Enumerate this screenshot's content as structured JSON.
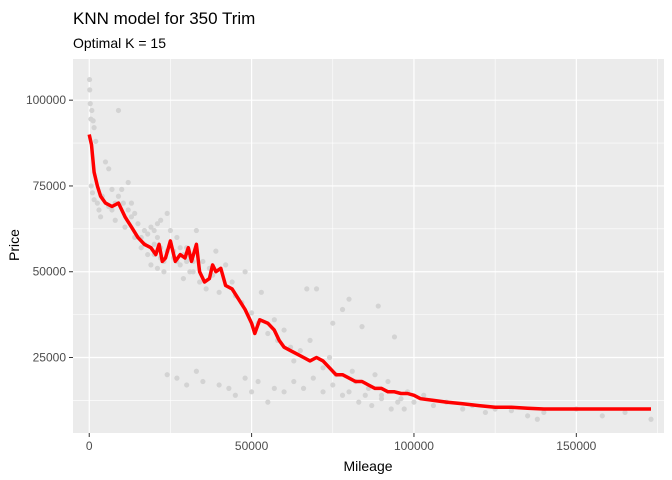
{
  "chart_data": {
    "type": "scatter",
    "title": "KNN model for 350 Trim",
    "subtitle": "Optimal K = 15",
    "xlabel": "Mileage",
    "ylabel": "Price",
    "xlim": [
      -5000,
      177000
    ],
    "ylim": [
      3000,
      112000
    ],
    "xticks": [
      0,
      50000,
      100000,
      150000
    ],
    "xtick_labels": [
      "0",
      "50000",
      "100000",
      "150000"
    ],
    "yticks": [
      25000,
      50000,
      75000,
      100000
    ],
    "ytick_labels": [
      "25000",
      "50000",
      "75000",
      "100000"
    ],
    "grid": true,
    "legend": "none",
    "colors": {
      "panel": "#ebebeb",
      "grid": "#ffffff",
      "points": "#d3d3d3",
      "fit_line": "#ff0000"
    },
    "series": [
      {
        "type": "scatter",
        "points": [
          [
            100,
            106000
          ],
          [
            150,
            103000
          ],
          [
            300,
            99000
          ],
          [
            500,
            94500
          ],
          [
            800,
            97000
          ],
          [
            1200,
            94000
          ],
          [
            1500,
            92000
          ],
          [
            2000,
            88000
          ],
          [
            600,
            75000
          ],
          [
            1000,
            73000
          ],
          [
            1500,
            71000
          ],
          [
            2500,
            70000
          ],
          [
            3000,
            68000
          ],
          [
            3500,
            66000
          ],
          [
            4000,
            72000
          ],
          [
            5000,
            82000
          ],
          [
            6000,
            80000
          ],
          [
            7000,
            68000
          ],
          [
            8000,
            65000
          ],
          [
            9000,
            97000
          ],
          [
            10000,
            74000
          ],
          [
            10500,
            70000
          ],
          [
            11000,
            63000
          ],
          [
            12000,
            76000
          ],
          [
            13000,
            66000
          ],
          [
            14000,
            60000
          ],
          [
            15000,
            64000
          ],
          [
            16000,
            57000
          ],
          [
            17000,
            62000
          ],
          [
            18000,
            55000
          ],
          [
            19000,
            52000
          ],
          [
            20000,
            58000
          ],
          [
            21000,
            60000
          ],
          [
            22000,
            54000
          ],
          [
            23000,
            50000
          ],
          [
            24000,
            67000
          ],
          [
            25000,
            62000
          ],
          [
            26000,
            56000
          ],
          [
            27000,
            60000
          ],
          [
            28000,
            52000
          ],
          [
            29000,
            48000
          ],
          [
            30000,
            57000
          ],
          [
            31000,
            54000
          ],
          [
            32000,
            50000
          ],
          [
            33000,
            62000
          ],
          [
            34000,
            47000
          ],
          [
            35000,
            53000
          ],
          [
            36000,
            45000
          ],
          [
            37000,
            51000
          ],
          [
            38000,
            49000
          ],
          [
            39000,
            56000
          ],
          [
            40000,
            44000
          ],
          [
            42000,
            52000
          ],
          [
            44000,
            47000
          ],
          [
            45000,
            43000
          ],
          [
            47000,
            41000
          ],
          [
            48000,
            50000
          ],
          [
            50000,
            38000
          ],
          [
            52000,
            35000
          ],
          [
            53000,
            44000
          ],
          [
            55000,
            32000
          ],
          [
            57000,
            36000
          ],
          [
            58000,
            30000
          ],
          [
            60000,
            33000
          ],
          [
            62000,
            28000
          ],
          [
            63000,
            24000
          ],
          [
            65000,
            27000
          ],
          [
            67000,
            45000
          ],
          [
            68000,
            30000
          ],
          [
            70000,
            45000
          ],
          [
            72000,
            22000
          ],
          [
            74000,
            25000
          ],
          [
            75000,
            35000
          ],
          [
            76000,
            20000
          ],
          [
            78000,
            39000
          ],
          [
            80000,
            42000
          ],
          [
            81000,
            21000
          ],
          [
            82000,
            18000
          ],
          [
            84000,
            34000
          ],
          [
            86000,
            16000
          ],
          [
            88000,
            20000
          ],
          [
            89000,
            40000
          ],
          [
            90000,
            14000
          ],
          [
            92000,
            18000
          ],
          [
            94000,
            31000
          ],
          [
            96000,
            13000
          ],
          [
            98000,
            15000
          ],
          [
            100000,
            12000
          ],
          [
            103000,
            14000
          ],
          [
            106000,
            11000
          ],
          [
            110000,
            12000
          ],
          [
            115000,
            10000
          ],
          [
            118000,
            11000
          ],
          [
            122000,
            9000
          ],
          [
            125000,
            10000
          ],
          [
            130000,
            9500
          ],
          [
            135000,
            8000
          ],
          [
            138000,
            7000
          ],
          [
            140000,
            9000
          ],
          [
            150000,
            10000
          ],
          [
            158000,
            8000
          ],
          [
            165000,
            9000
          ],
          [
            173000,
            7000
          ],
          [
            24000,
            20000
          ],
          [
            27000,
            19000
          ],
          [
            30000,
            17000
          ],
          [
            33000,
            21000
          ],
          [
            35000,
            18000
          ],
          [
            40000,
            17000
          ],
          [
            43000,
            16000
          ],
          [
            45000,
            14000
          ],
          [
            48000,
            19000
          ],
          [
            50000,
            15000
          ],
          [
            52000,
            18000
          ],
          [
            55000,
            12000
          ],
          [
            57000,
            16000
          ],
          [
            60000,
            15000
          ],
          [
            63000,
            18000
          ],
          [
            66000,
            16000
          ],
          [
            69000,
            19000
          ],
          [
            72000,
            15000
          ],
          [
            75000,
            17000
          ],
          [
            78000,
            14000
          ],
          [
            80000,
            15000
          ],
          [
            83000,
            12000
          ],
          [
            85000,
            14000
          ],
          [
            87000,
            11000
          ],
          [
            90000,
            13000
          ],
          [
            93000,
            10000
          ],
          [
            95000,
            12000
          ],
          [
            97000,
            10000
          ],
          [
            20000,
            55000
          ],
          [
            21000,
            51000
          ],
          [
            22000,
            57000
          ],
          [
            23000,
            53000
          ],
          [
            24000,
            56000
          ],
          [
            25000,
            58000
          ],
          [
            26000,
            54000
          ],
          [
            27000,
            53000
          ],
          [
            28000,
            57000
          ],
          [
            29000,
            55000
          ],
          [
            30000,
            53000
          ],
          [
            31000,
            50000
          ],
          [
            32000,
            53000
          ],
          [
            33000,
            56000
          ],
          [
            16000,
            60000
          ],
          [
            17000,
            58000
          ],
          [
            18000,
            61000
          ],
          [
            19000,
            63000
          ],
          [
            20000,
            62000
          ],
          [
            21000,
            64000
          ],
          [
            22000,
            65000
          ],
          [
            12000,
            68000
          ],
          [
            13000,
            70000
          ],
          [
            14000,
            67000
          ],
          [
            9000,
            72000
          ],
          [
            8000,
            70000
          ],
          [
            7000,
            74000
          ],
          [
            6000,
            69000
          ]
        ]
      },
      {
        "type": "line",
        "points": [
          [
            0,
            90000
          ],
          [
            700,
            87000
          ],
          [
            1500,
            79000
          ],
          [
            2500,
            75000
          ],
          [
            3500,
            72000
          ],
          [
            5000,
            70000
          ],
          [
            7000,
            69000
          ],
          [
            9000,
            70000
          ],
          [
            11000,
            66000
          ],
          [
            13000,
            63000
          ],
          [
            15000,
            60000
          ],
          [
            17000,
            58000
          ],
          [
            19000,
            57000
          ],
          [
            20500,
            55000
          ],
          [
            21500,
            58000
          ],
          [
            22500,
            53000
          ],
          [
            23500,
            54000
          ],
          [
            25000,
            59000
          ],
          [
            26500,
            53000
          ],
          [
            28000,
            55000
          ],
          [
            29500,
            54000
          ],
          [
            30500,
            57000
          ],
          [
            31500,
            53000
          ],
          [
            33000,
            58000
          ],
          [
            34000,
            50000
          ],
          [
            35500,
            47000
          ],
          [
            37000,
            48000
          ],
          [
            38000,
            52000
          ],
          [
            39000,
            50000
          ],
          [
            40500,
            51000
          ],
          [
            42000,
            46000
          ],
          [
            44000,
            45000
          ],
          [
            46000,
            42000
          ],
          [
            48000,
            39000
          ],
          [
            50000,
            35000
          ],
          [
            51000,
            32000
          ],
          [
            52500,
            36000
          ],
          [
            55000,
            35000
          ],
          [
            57000,
            33000
          ],
          [
            58500,
            30000
          ],
          [
            60000,
            28000
          ],
          [
            62000,
            27000
          ],
          [
            64000,
            26000
          ],
          [
            66000,
            25000
          ],
          [
            68000,
            24000
          ],
          [
            70000,
            25000
          ],
          [
            72000,
            24000
          ],
          [
            74000,
            22000
          ],
          [
            76000,
            20000
          ],
          [
            78000,
            20000
          ],
          [
            80000,
            19000
          ],
          [
            82000,
            18000
          ],
          [
            84000,
            18000
          ],
          [
            86000,
            17000
          ],
          [
            88000,
            16000
          ],
          [
            90000,
            16000
          ],
          [
            92000,
            15000
          ],
          [
            94000,
            15000
          ],
          [
            96000,
            14500
          ],
          [
            98000,
            14500
          ],
          [
            100000,
            14000
          ],
          [
            102000,
            13000
          ],
          [
            106000,
            12500
          ],
          [
            110000,
            12000
          ],
          [
            115000,
            11500
          ],
          [
            120000,
            11000
          ],
          [
            125000,
            10500
          ],
          [
            130000,
            10500
          ],
          [
            135000,
            10200
          ],
          [
            140000,
            10000
          ],
          [
            150000,
            10000
          ],
          [
            160000,
            10000
          ],
          [
            173000,
            10000
          ]
        ]
      }
    ]
  }
}
